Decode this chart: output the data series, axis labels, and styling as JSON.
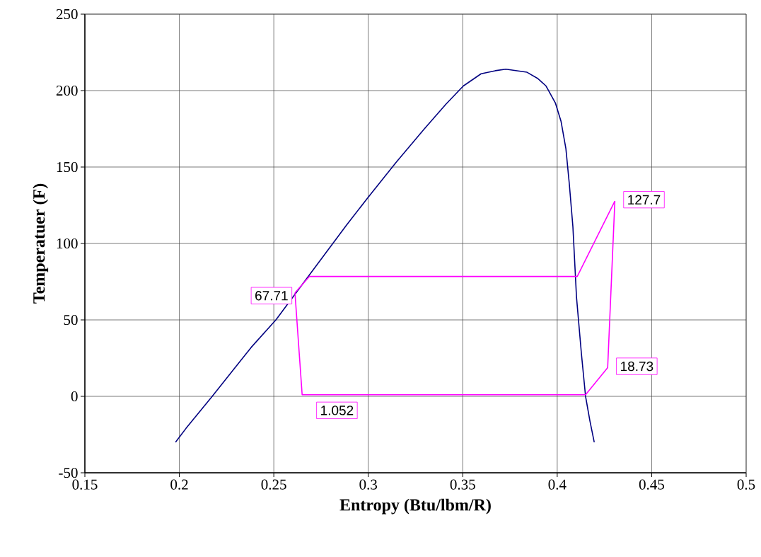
{
  "chart_data": {
    "type": "line",
    "xlabel": "Entropy (Btu/lbm/R)",
    "ylabel": "Temperatuer (F)",
    "xlim": [
      0.15,
      0.5
    ],
    "xticks": [
      0.15,
      0.2,
      0.25,
      0.3,
      0.35,
      0.4,
      0.45,
      0.5
    ],
    "ylim": [
      -50,
      250
    ],
    "yticks": [
      -50,
      0,
      50,
      100,
      150,
      200,
      250
    ],
    "grid": true,
    "legend": false,
    "marker": "none",
    "line_style": "solid",
    "series": [
      {
        "color": "#000080",
        "x": [
          0.198,
          0.2035,
          0.2174,
          0.238,
          0.2511,
          0.2698,
          0.2885,
          0.2998,
          0.3147,
          0.3297,
          0.341,
          0.3503,
          0.3597,
          0.3672,
          0.3728,
          0.384,
          0.3896,
          0.3941,
          0.399,
          0.402,
          0.4046,
          0.4064,
          0.4083,
          0.4102,
          0.4128,
          0.415,
          0.4173,
          0.4196
        ],
        "values": [
          -30,
          -21,
          0,
          32,
          50,
          81,
          112,
          130,
          153,
          175,
          191,
          203,
          211,
          213,
          214,
          212,
          208,
          203,
          192,
          180,
          162,
          139,
          111,
          65,
          28,
          0,
          -16,
          -30
        ]
      },
      {
        "color": "#ff00ff",
        "x": [
          0.2612,
          0.265,
          0.415,
          0.4267,
          0.4305
        ],
        "values": [
          67.71,
          1.052,
          1.052,
          18.73,
          127.7
        ],
        "value_labels": [
          "67.71",
          "1.052",
          null,
          "18.73",
          "127.7"
        ]
      },
      {
        "color": "#ff00ff",
        "x": [
          0.2612,
          0.2688,
          0.4106,
          0.4305
        ],
        "values": [
          67.71,
          78.4,
          78.4,
          127.7
        ]
      }
    ]
  }
}
